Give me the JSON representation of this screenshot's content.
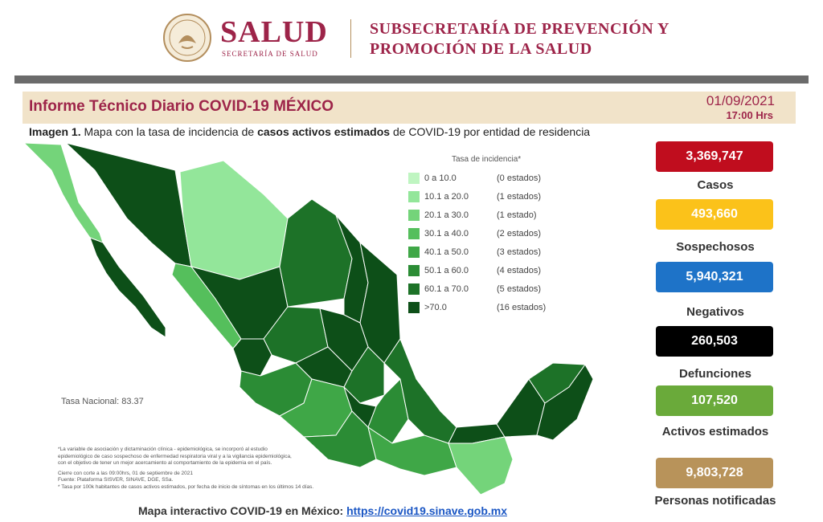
{
  "header": {
    "brand": "SALUD",
    "brand_sub": "SECRETARÍA DE SALUD",
    "subsecretaria_line1": "SUBSECRETARÍA DE PREVENCIÓN Y",
    "subsecretaria_line2": "PROMOCIÓN DE LA SALUD"
  },
  "report": {
    "title": "Informe Técnico Diario COVID-19 MÉXICO",
    "date": "01/09/2021",
    "time": "17:00 Hrs"
  },
  "caption": {
    "prefix": "Imagen 1.",
    "part1": " Mapa con la tasa de incidencia de ",
    "bold": "casos activos estimados",
    "part2": " de COVID-19 por entidad de residencia"
  },
  "legend": {
    "title": "Tasa de incidencia*",
    "rows": [
      {
        "range": "0   a  10.0",
        "count": "(0 estados)",
        "color": "#bff5c1"
      },
      {
        "range": "10.1 a  20.0",
        "count": "(1 estados)",
        "color": "#93e69a"
      },
      {
        "range": "20.1 a  30.0",
        "count": "(1 estado)",
        "color": "#74d47a"
      },
      {
        "range": "30.1 a  40.0",
        "count": "(2 estados)",
        "color": "#55bf5c"
      },
      {
        "range": "40.1 a  50.0",
        "count": "(3 estados)",
        "color": "#3fa747"
      },
      {
        "range": "50.1 a  60.0",
        "count": "(4 estados)",
        "color": "#2b8c35"
      },
      {
        "range": "60.1 a  70.0",
        "count": "(5 estados)",
        "color": "#1d7228"
      },
      {
        "range": ">70.0",
        "count": "(16 estados)",
        "color": "#0d4f18"
      }
    ]
  },
  "tasa_nacional": "Tasa Nacional: 83.37",
  "notes": [
    "*La variable de asociación y dictaminación clínica - epidemiológica, se incorporó al estudio",
    "epidemiológico de caso sospechoso de enfermedad respiratoria viral y a la vigilancia epidemiológica,",
    "con el objetivo de tener un mejor acercamiento al comportamiento de la epidemia en el país.",
    "Cierre con corte a las 09:00hrs, 01 de septiembre de 2021",
    "Fuente: Plataforma SISVER, SINAVE, DGE, SSa.",
    "* Tasa por 100k habitantes de casos activos estimados, por fecha de inicio de síntomas en los últimos 14 días."
  ],
  "map_link": {
    "label": "Mapa interactivo COVID-19 en México: ",
    "url": "https://covid19.sinave.gob.mx"
  },
  "stats": [
    {
      "value": "3,369,747",
      "label": "Casos",
      "color": "#c00d1e"
    },
    {
      "value": "493,660",
      "label": "Sospechosos",
      "color": "#fbc21a"
    },
    {
      "value": "5,940,321",
      "label": "Negativos",
      "color": "#1e73c8"
    },
    {
      "value": "260,503",
      "label": "Defunciones",
      "color": "#000000"
    },
    {
      "value": "107,520",
      "label": "Activos estimados",
      "color": "#6aaa3a"
    },
    {
      "value": "9,803,728",
      "label": "Personas notificadas",
      "color": "#b8935a"
    }
  ]
}
